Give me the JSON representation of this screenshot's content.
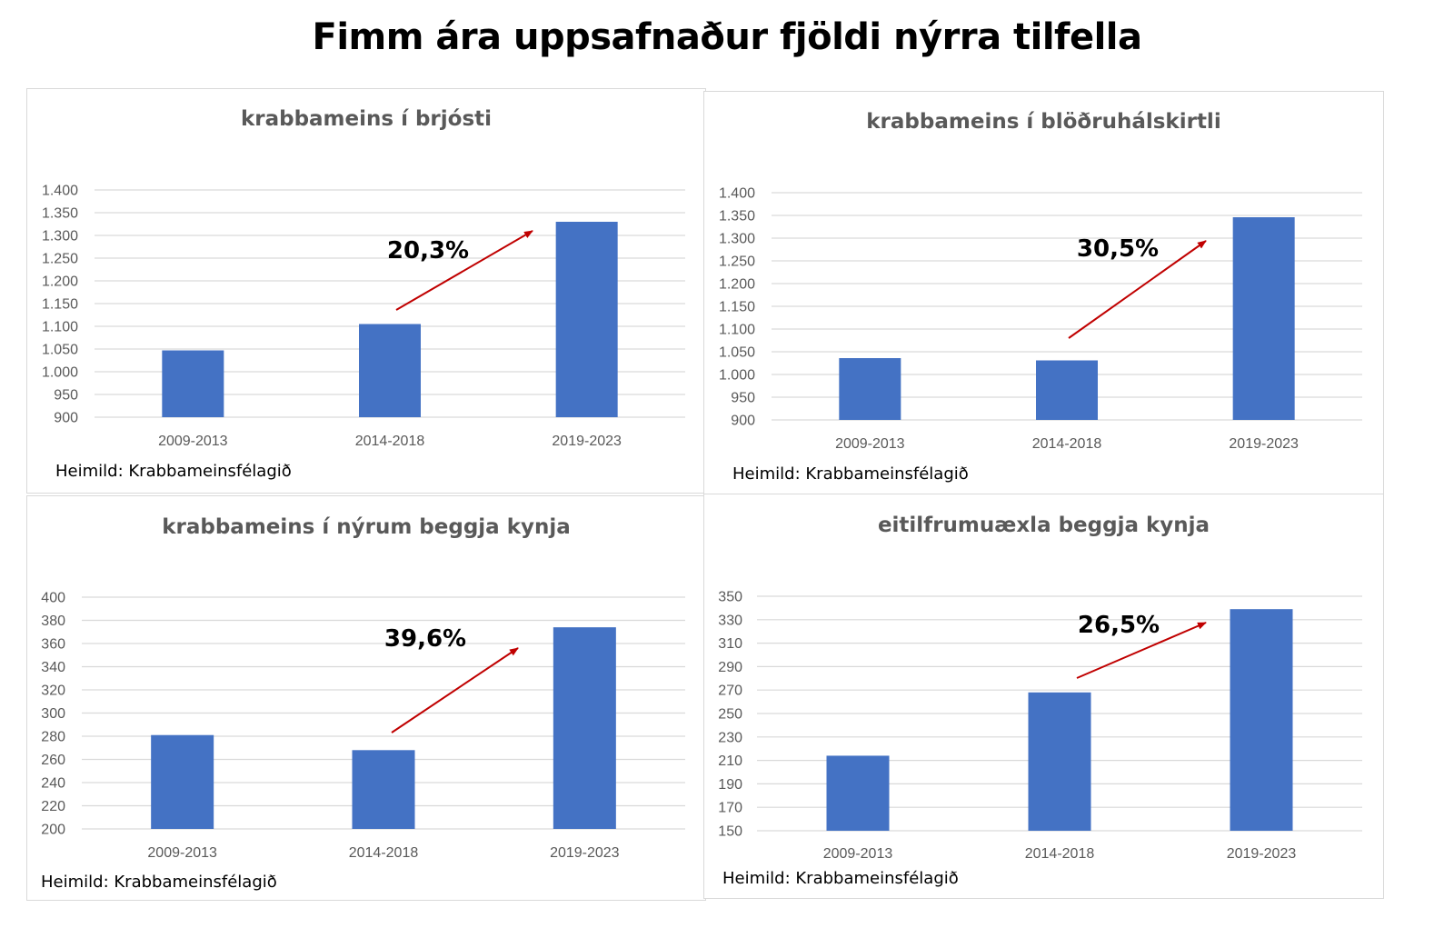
{
  "page": {
    "title": "Fimm ára uppsafnaður fjöldi nýrra tilfella"
  },
  "colors": {
    "bar": "#4472C4",
    "arrow": "#C00000",
    "grid": "#d9d9d9",
    "axis_text": "#595959"
  },
  "chart_data": [
    {
      "type": "bar",
      "title": "krabbameins í brjósti",
      "categories": [
        "2009-2013",
        "2014-2018",
        "2019-2023"
      ],
      "values": [
        1047,
        1105,
        1330
      ],
      "ylim": [
        900,
        1400
      ],
      "yticks": [
        "900",
        "950",
        "1.000",
        "1.050",
        "1.100",
        "1.150",
        "1.200",
        "1.250",
        "1.300",
        "1.350",
        "1.400"
      ],
      "grid": true,
      "annotation": "20,3%",
      "source": "Heimild: Krabbameinsfélagið"
    },
    {
      "type": "bar",
      "title": "krabbameins í blöðruhálskirtli",
      "categories": [
        "2009-2013",
        "2014-2018",
        "2019-2023"
      ],
      "values": [
        1036,
        1031,
        1346
      ],
      "ylim": [
        900,
        1400
      ],
      "yticks": [
        "900",
        "950",
        "1.000",
        "1.050",
        "1.100",
        "1.150",
        "1.200",
        "1.250",
        "1.300",
        "1.350",
        "1.400"
      ],
      "grid": true,
      "annotation": "30,5%",
      "source": "Heimild: Krabbameinsfélagið"
    },
    {
      "type": "bar",
      "title": "krabbameins í nýrum beggja kynja",
      "categories": [
        "2009-2013",
        "2014-2018",
        "2019-2023"
      ],
      "values": [
        281,
        268,
        374
      ],
      "ylim": [
        200,
        400
      ],
      "yticks": [
        "200",
        "220",
        "240",
        "260",
        "280",
        "300",
        "320",
        "340",
        "360",
        "380",
        "400"
      ],
      "grid": true,
      "annotation": "39,6%",
      "source": "Heimild: Krabbameinsfélagið"
    },
    {
      "type": "bar",
      "title": "eitilfrumuæxla beggja kynja",
      "categories": [
        "2009-2013",
        "2014-2018",
        "2019-2023"
      ],
      "values": [
        214,
        268,
        339
      ],
      "ylim": [
        150,
        350
      ],
      "yticks": [
        "150",
        "170",
        "190",
        "210",
        "230",
        "250",
        "270",
        "290",
        "310",
        "330",
        "350"
      ],
      "grid": true,
      "annotation": "26,5%",
      "source": "Heimild: Krabbameinsfélagið"
    }
  ]
}
